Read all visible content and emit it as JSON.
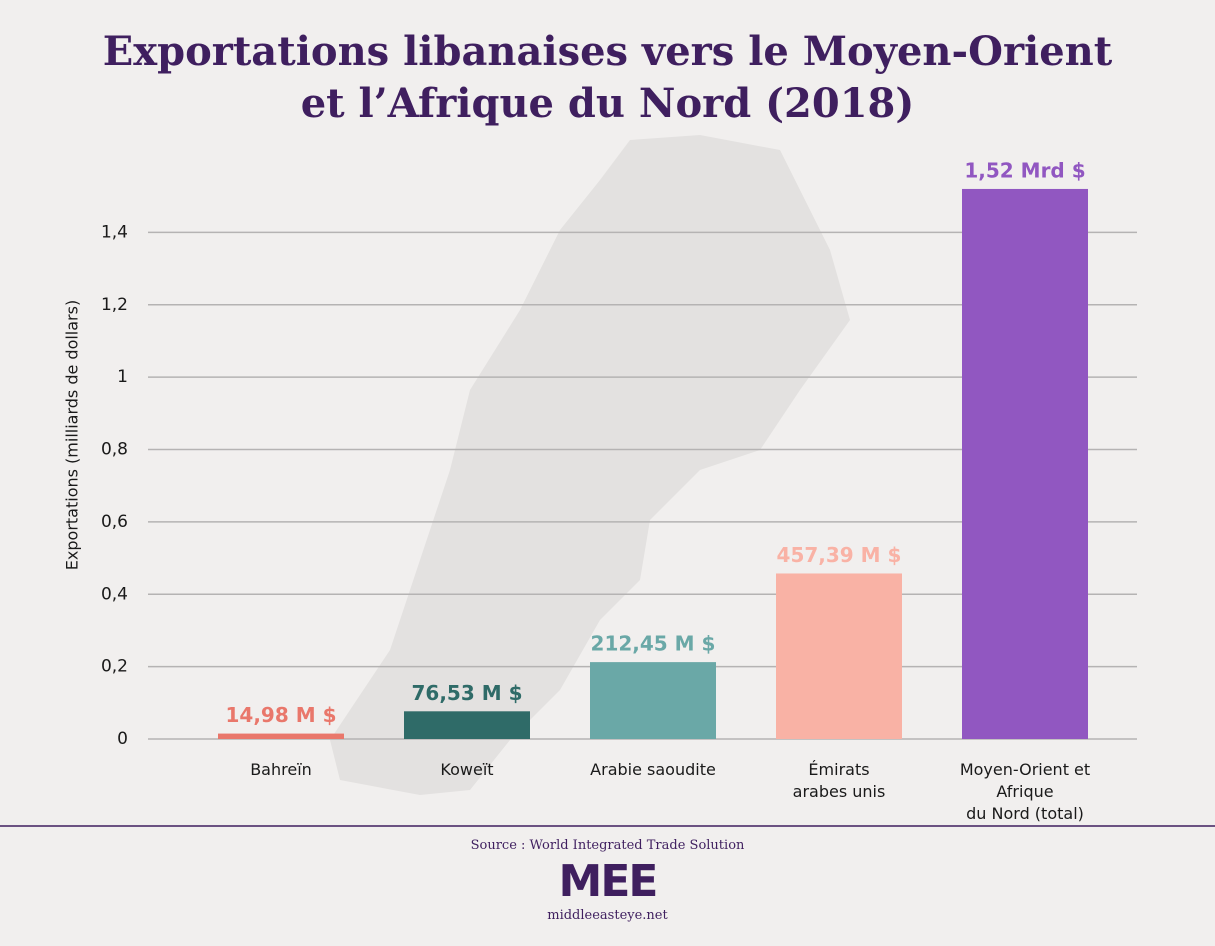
{
  "chart_data": {
    "type": "bar",
    "title": "Exportations libanaises vers le Moyen-Orient\net l’Afrique du Nord (2018)",
    "y_label": "Exportations (milliards de dollars)",
    "categories": [
      "Bahreïn",
      "Koweït",
      "Arabie saoudite",
      "Émirats\narabes unis",
      "Moyen-Orient et Afrique\ndu Nord (total)"
    ],
    "values": [
      0.01498,
      0.07653,
      0.21245,
      0.45739,
      1.52
    ],
    "value_labels": [
      "14,98 M $",
      "76,53 M $",
      "212,45 M $",
      "457,39 M $",
      "1,52 Mrd $"
    ],
    "colors": [
      "#e9776b",
      "#2f6b68",
      "#6aa8a7",
      "#f9b2a5",
      "#9157c1"
    ],
    "ylim": [
      0,
      1.6
    ],
    "yticks": [
      0,
      {
        "value": 0.2,
        "label": "0,2"
      },
      {
        "value": 0.4,
        "label": "0,4"
      },
      {
        "value": 0.6,
        "label": "0,6"
      },
      {
        "value": 0.8,
        "label": "0,8"
      },
      1,
      {
        "value": 1.2,
        "label": "1,2"
      },
      {
        "value": 1.4,
        "label": "1,4"
      }
    ],
    "grid": true,
    "source": "Source : World Integrated Trade Solution",
    "logo": "MEE",
    "website": "middleeasteye.net"
  }
}
